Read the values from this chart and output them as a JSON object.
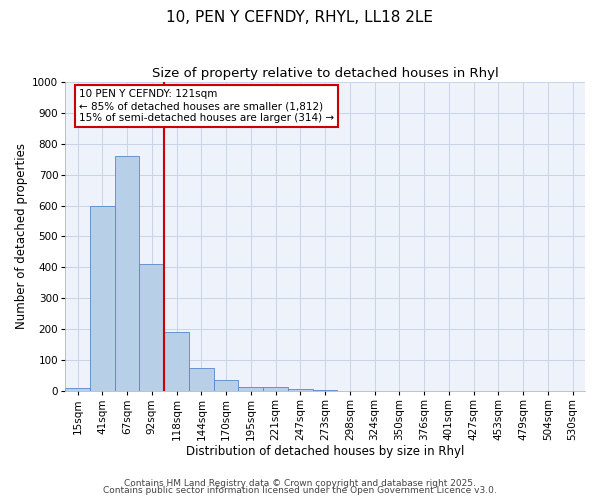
{
  "title": "10, PEN Y CEFNDY, RHYL, LL18 2LE",
  "subtitle": "Size of property relative to detached houses in Rhyl",
  "xlabel": "Distribution of detached houses by size in Rhyl",
  "ylabel": "Number of detached properties",
  "categories": [
    "15sqm",
    "41sqm",
    "67sqm",
    "92sqm",
    "118sqm",
    "144sqm",
    "170sqm",
    "195sqm",
    "221sqm",
    "247sqm",
    "273sqm",
    "298sqm",
    "324sqm",
    "350sqm",
    "376sqm",
    "401sqm",
    "427sqm",
    "453sqm",
    "479sqm",
    "504sqm",
    "530sqm"
  ],
  "values": [
    10,
    600,
    760,
    410,
    190,
    75,
    35,
    15,
    15,
    8,
    5,
    0,
    0,
    0,
    0,
    0,
    0,
    0,
    0,
    0,
    0
  ],
  "bar_color": "#b8cfe8",
  "bar_edge_color": "#5588cc",
  "vline_x_index": 4,
  "vline_color": "#cc0000",
  "annotation_line1": "10 PEN Y CEFNDY: 121sqm",
  "annotation_line2": "← 85% of detached houses are smaller (1,812)",
  "annotation_line3": "15% of semi-detached houses are larger (314) →",
  "annotation_box_color": "#cc0000",
  "annotation_text_color": "#000000",
  "ylim": [
    0,
    1000
  ],
  "yticks": [
    0,
    100,
    200,
    300,
    400,
    500,
    600,
    700,
    800,
    900,
    1000
  ],
  "grid_color": "#c8d4e8",
  "background_color": "#eef2fb",
  "footer_line1": "Contains HM Land Registry data © Crown copyright and database right 2025.",
  "footer_line2": "Contains public sector information licensed under the Open Government Licence v3.0.",
  "title_fontsize": 11,
  "subtitle_fontsize": 9.5,
  "axis_label_fontsize": 8.5,
  "tick_fontsize": 7.5,
  "annotation_fontsize": 7.5,
  "footer_fontsize": 6.5
}
